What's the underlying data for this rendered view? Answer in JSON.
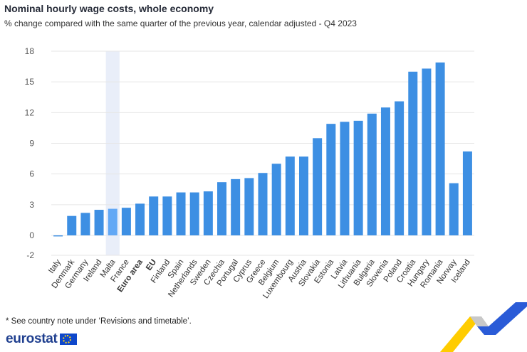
{
  "header": {
    "title": "Nominal hourly wage costs, whole economy",
    "subtitle": "% change compared with the same quarter of the previous year, calendar adjusted - Q4 2023"
  },
  "footer": {
    "note": "* See country note under ‘Revisions and timetable’.",
    "brand": "eurostat"
  },
  "colors": {
    "bar": "#3d8fe3",
    "bar_highlight": "#62a8f5",
    "hover_band": "#e9eef9",
    "grid": "#e6e6e6",
    "axis_text": "#5a5a5a"
  },
  "chart_data": {
    "type": "bar",
    "title": "Nominal hourly wage costs, whole economy",
    "subtitle": "% change compared with the same quarter of the previous year, calendar adjusted - Q4 2023",
    "xlabel": "",
    "ylabel": "",
    "categories": [
      "Italy",
      "Denmark",
      "Germany",
      "Ireland",
      "Malta",
      "France",
      "Euro area",
      "EU",
      "Finland",
      "Spain",
      "Netherlands",
      "Sweden",
      "Czechia",
      "Portugal",
      "Cyprus",
      "Greece",
      "Belgium",
      "Luxembourg",
      "Austria",
      "Slovakia",
      "Estonia",
      "Latvia",
      "Lithuania",
      "Bulgaria",
      "Slovenia",
      "Poland",
      "Croatia",
      "Hungary",
      "Romania",
      "Norway",
      "Iceland"
    ],
    "values": [
      -0.1,
      1.9,
      2.2,
      2.5,
      2.6,
      2.7,
      3.1,
      3.8,
      3.8,
      4.2,
      4.2,
      4.3,
      5.2,
      5.5,
      5.6,
      6.1,
      7.0,
      7.7,
      7.7,
      9.5,
      10.9,
      11.1,
      11.2,
      11.9,
      12.5,
      13.1,
      16.0,
      16.3,
      16.9,
      5.1,
      8.2
    ],
    "bold_categories": [
      "Euro area",
      "EU"
    ],
    "highlighted_category": "Malta",
    "yticks": [
      -2,
      0,
      3,
      6,
      9,
      12,
      15,
      18
    ],
    "ylim": [
      -2,
      18
    ],
    "grid": true,
    "legend": "none"
  }
}
